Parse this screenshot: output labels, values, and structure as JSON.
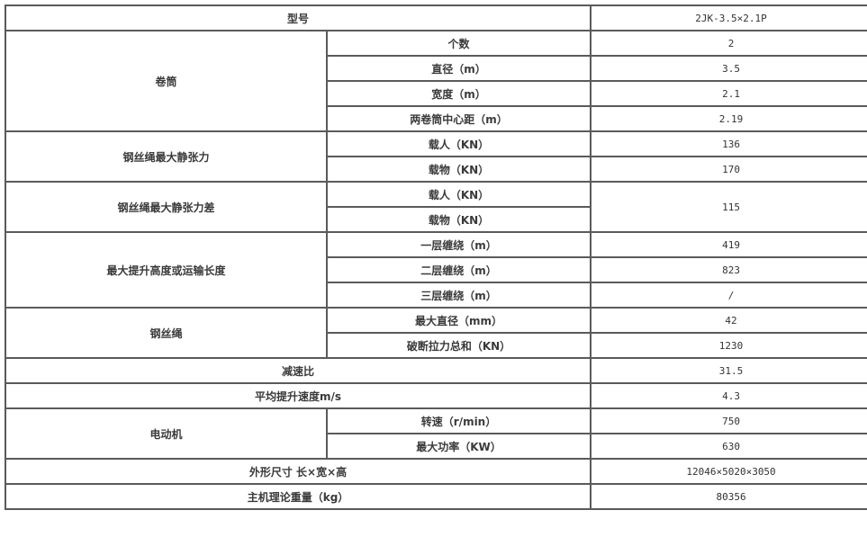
{
  "model": {
    "label": "型号",
    "value": "2JK-3.5×2.1P"
  },
  "drum": {
    "label": "卷筒",
    "rows": [
      {
        "label": "个数",
        "value": "2"
      },
      {
        "label": "直径（m）",
        "value": "3.5"
      },
      {
        "label": "宽度（m）",
        "value": "2.1"
      },
      {
        "label": "两卷筒中心距（m）",
        "value": "2.19"
      }
    ]
  },
  "max_static_tension": {
    "label": "钢丝绳最大静张力",
    "rows": [
      {
        "label": "载人（KN）",
        "value": "136"
      },
      {
        "label": "载物（KN）",
        "value": "170"
      }
    ]
  },
  "max_static_tension_diff": {
    "label": "钢丝绳最大静张力差",
    "rows": [
      {
        "label": "载人（KN）"
      },
      {
        "label": "载物（KN）"
      }
    ],
    "value": "115"
  },
  "max_lift": {
    "label": "最大提升高度或运输长度",
    "rows": [
      {
        "label": "一层缠绕（m）",
        "value": "419"
      },
      {
        "label": "二层缠绕（m）",
        "value": "823"
      },
      {
        "label": "三层缠绕（m）",
        "value": "/"
      }
    ]
  },
  "rope": {
    "label": "钢丝绳",
    "rows": [
      {
        "label": "最大直径（mm）",
        "value": "42"
      },
      {
        "label": "破断拉力总和（KN）",
        "value": "1230"
      }
    ]
  },
  "reduction_ratio": {
    "label": "减速比",
    "value": "31.5"
  },
  "avg_speed": {
    "label": "平均提升速度m/s",
    "value": "4.3"
  },
  "motor": {
    "label": "电动机",
    "rows": [
      {
        "label": "转速（r/min）",
        "value": "750"
      },
      {
        "label": "最大功率（KW）",
        "value": "630"
      }
    ]
  },
  "dimensions": {
    "label": "外形尺寸 长×宽×高",
    "value": "12046×5020×3050"
  },
  "weight": {
    "label": "主机理论重量（kg）",
    "value": "80356"
  }
}
